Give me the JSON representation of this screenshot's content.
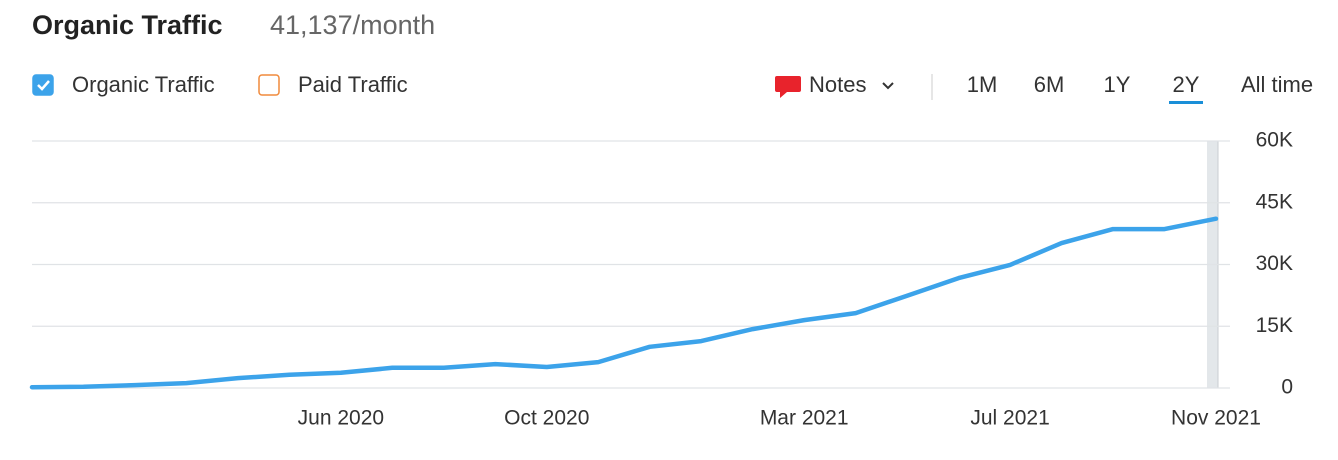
{
  "chart_data": {
    "type": "line",
    "title": "Organic Traffic",
    "subtitle": "41,137/month",
    "categories": [
      null,
      null,
      null,
      null,
      null,
      null,
      "Jun 2020",
      null,
      null,
      null,
      "Oct 2020",
      null,
      null,
      null,
      null,
      "Mar 2021",
      null,
      null,
      null,
      "Jul 2021",
      null,
      null,
      null,
      "Nov 2021"
    ],
    "series": [
      {
        "name": "Organic Traffic",
        "color": "#3ca3ea",
        "values": [
          200,
          300,
          700,
          1200,
          2400,
          3200,
          3700,
          4900,
          4900,
          5800,
          5100,
          6300,
          10000,
          11400,
          14300,
          16500,
          18200,
          22400,
          26700,
          29900,
          35200,
          38600,
          38600,
          41137
        ]
      }
    ],
    "ylim": [
      0,
      60000
    ],
    "yticks": [
      0,
      {
        "value": 15000,
        "label": "15K"
      },
      {
        "value": 30000,
        "label": "30K"
      },
      {
        "value": 45000,
        "label": "45K"
      },
      {
        "value": 60000,
        "label": "60K"
      }
    ],
    "grid": true
  },
  "ui": {
    "legend": [
      {
        "label": "Organic Traffic",
        "checked": true,
        "color": "#3ca3ea"
      },
      {
        "label": "Paid Traffic",
        "checked": false,
        "color": "#f08a3c"
      }
    ],
    "notes": "Notes",
    "ranges": [
      "1M",
      "6M",
      "1Y",
      "2Y",
      "All time"
    ],
    "active_range": 3
  }
}
